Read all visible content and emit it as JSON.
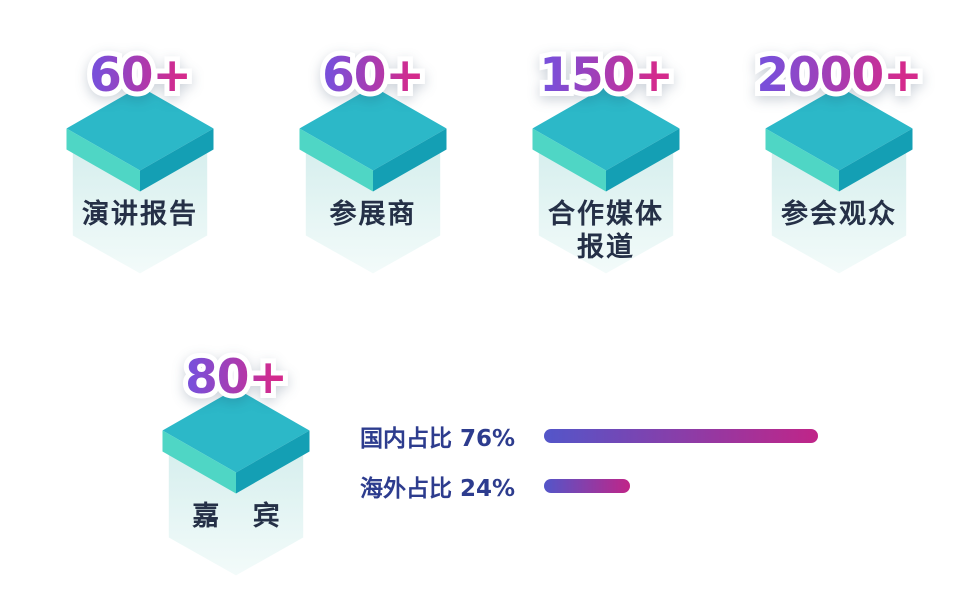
{
  "stats": [
    {
      "value": "60+",
      "label": "演讲报告"
    },
    {
      "value": "60+",
      "label": "参展商"
    },
    {
      "value": "150+",
      "label_line1": "合作媒体",
      "label_line2": "报道"
    },
    {
      "value": "2000+",
      "label": "参会观众"
    }
  ],
  "guest": {
    "value": "80+",
    "label": "嘉 宾"
  },
  "distribution": {
    "rows": [
      {
        "label": "国内占比 76%",
        "value": 76
      },
      {
        "label": "海外占比 24%",
        "value": 24
      }
    ]
  },
  "colors": {
    "number_gradient_start": "#7a4fd9",
    "number_gradient_end": "#d42a8c",
    "bar_gradient_start": "#5356c9",
    "bar_gradient_end": "#c02588",
    "cube_top": "#2cb8c8",
    "cube_left": "#4fd6c5",
    "cube_right": "#149fb4",
    "cube_body": "#e4f4f3",
    "stat_label_color": "#253047",
    "bar_label_color": "#2d3c8e"
  },
  "chart_data": [
    {
      "type": "table",
      "categories": [
        "演讲报告",
        "参展商",
        "合作媒体报道",
        "参会观众",
        "嘉宾"
      ],
      "values": [
        "60+",
        "60+",
        "150+",
        "2000+",
        "80+"
      ]
    },
    {
      "type": "bar",
      "orientation": "horizontal",
      "categories": [
        "国内占比",
        "海外占比"
      ],
      "values": [
        76,
        24
      ],
      "value_suffix": "%",
      "xlim": [
        0,
        100
      ],
      "grid": false,
      "legend": false
    }
  ]
}
